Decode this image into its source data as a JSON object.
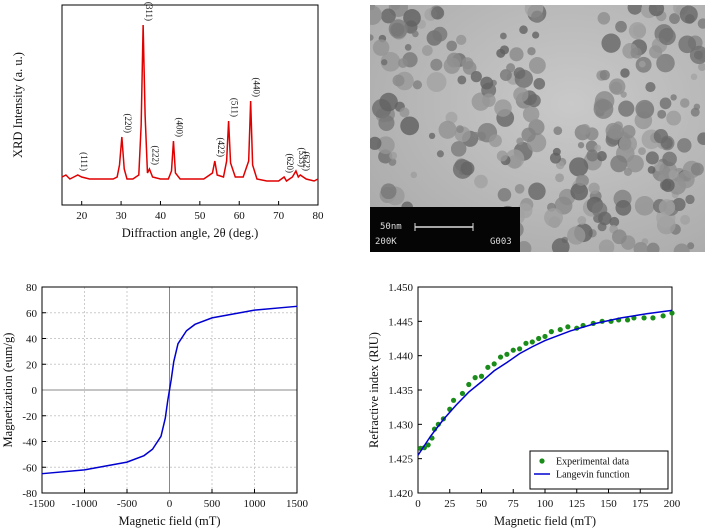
{
  "chart_data": [
    {
      "type": "line",
      "xlabel": "Diffraction angle, 2θ (deg.)",
      "ylabel": "XRD Intensity (a. u.)",
      "xlim": [
        15,
        80
      ],
      "xticks": [
        20,
        30,
        40,
        50,
        60,
        70,
        80
      ],
      "ylim": [
        0,
        100
      ],
      "series": [
        {
          "color": "#e00000",
          "x": [
            15,
            16,
            17,
            18,
            19,
            20,
            22,
            24,
            26,
            28,
            29,
            29.6,
            30.2,
            30.8,
            31.5,
            33,
            34.5,
            35.1,
            35.6,
            36.1,
            36.7,
            37.2,
            38,
            40,
            42,
            42.8,
            43.3,
            43.8,
            45,
            48,
            51,
            53.2,
            53.8,
            54.4,
            56,
            56.8,
            57.3,
            57.8,
            59,
            61,
            62.4,
            62.9,
            63.4,
            64.5,
            67,
            70,
            71.4,
            72,
            73.5,
            74.4,
            75,
            75.5,
            77,
            79,
            80
          ],
          "values": [
            14,
            15,
            13,
            14,
            15,
            14,
            13,
            13,
            13,
            13,
            14,
            20,
            34,
            18,
            13,
            13,
            15,
            40,
            90,
            45,
            16,
            18,
            14,
            13,
            13,
            17,
            32,
            16,
            13,
            13,
            13,
            16,
            22,
            15,
            14,
            22,
            42,
            21,
            14,
            14,
            22,
            52,
            20,
            13,
            12,
            12,
            14,
            12,
            14,
            17,
            14,
            15,
            13,
            12,
            13
          ]
        }
      ],
      "annotations": [
        {
          "text": "(111)",
          "x": 19
        },
        {
          "text": "(220)",
          "x": 30.2
        },
        {
          "text": "(311)",
          "x": 35.6
        },
        {
          "text": "(222)",
          "x": 37.2
        },
        {
          "text": "(400)",
          "x": 43.3
        },
        {
          "text": "(422)",
          "x": 53.8
        },
        {
          "text": "(511)",
          "x": 57.3
        },
        {
          "text": "(440)",
          "x": 62.9
        },
        {
          "text": "(620)",
          "x": 71.4
        },
        {
          "text": "(533)",
          "x": 74.4
        },
        {
          "text": "(622)",
          "x": 75.5
        }
      ]
    },
    {
      "type": "line",
      "xlabel": "Magnetic field (mT)",
      "ylabel": "Magnetization (eum/g)",
      "grid": true,
      "zero_lines": true,
      "xlim": [
        -1500,
        1500
      ],
      "xticks": [
        -1500,
        -1000,
        -500,
        0,
        500,
        1000,
        1500
      ],
      "ylim": [
        -80,
        80
      ],
      "yticks": [
        -80,
        -60,
        -40,
        -20,
        0,
        20,
        40,
        60,
        80
      ],
      "series": [
        {
          "color": "#0000d0",
          "x": [
            -1500,
            -1000,
            -500,
            -300,
            -200,
            -100,
            -50,
            -20,
            0,
            20,
            50,
            100,
            200,
            300,
            500,
            1000,
            1500
          ],
          "values": [
            -65,
            -62,
            -56,
            -51,
            -46,
            -36,
            -22,
            -8,
            0,
            8,
            22,
            36,
            46,
            51,
            56,
            62,
            65
          ]
        }
      ]
    },
    {
      "type": "line",
      "xlabel": "Magnetic field (mT)",
      "ylabel": "Refractive index (RIU)",
      "legend": "lower right",
      "xlim": [
        0,
        200
      ],
      "xticks": [
        0,
        25,
        50,
        75,
        100,
        125,
        150,
        175,
        200
      ],
      "ylim": [
        1.42,
        1.45
      ],
      "yticks": [
        {
          "value": 1.42,
          "label": "1.420"
        },
        {
          "value": 1.425,
          "label": "1.425"
        },
        {
          "value": 1.43,
          "label": "1.430"
        },
        {
          "value": 1.435,
          "label": "1.435"
        },
        {
          "value": 1.44,
          "label": "1.440"
        },
        {
          "value": 1.445,
          "label": "1.445"
        },
        {
          "value": 1.45,
          "label": "1.450"
        }
      ],
      "series": [
        {
          "name": "Experimental data",
          "type": "scatter",
          "color": "#1a8c1a",
          "x": [
            2,
            5,
            8,
            11,
            13,
            16,
            20,
            25,
            28,
            35,
            40,
            45,
            50,
            55,
            60,
            65,
            70,
            75,
            80,
            85,
            90,
            95,
            100,
            105,
            112,
            118,
            125,
            130,
            138,
            145,
            152,
            158,
            165,
            170,
            178,
            185,
            193,
            200
          ],
          "values": [
            1.4265,
            1.4266,
            1.427,
            1.428,
            1.4293,
            1.43,
            1.4308,
            1.4322,
            1.4335,
            1.4345,
            1.4358,
            1.4368,
            1.437,
            1.4383,
            1.4388,
            1.4398,
            1.4402,
            1.4408,
            1.441,
            1.4418,
            1.442,
            1.4425,
            1.4428,
            1.4435,
            1.4438,
            1.4442,
            1.444,
            1.4444,
            1.4447,
            1.445,
            1.445,
            1.4452,
            1.4452,
            1.4455,
            1.4455,
            1.4455,
            1.4458,
            1.4462
          ]
        },
        {
          "name": "Langevin function",
          "type": "line",
          "color": "#0000d0",
          "x": [
            0,
            10,
            20,
            30,
            40,
            50,
            60,
            70,
            80,
            90,
            100,
            120,
            140,
            160,
            180,
            200
          ],
          "values": [
            1.4255,
            1.4283,
            1.4307,
            1.4328,
            1.4347,
            1.4362,
            1.4378,
            1.439,
            1.4403,
            1.4413,
            1.4422,
            1.4436,
            1.4447,
            1.4455,
            1.4461,
            1.4466
          ]
        }
      ]
    }
  ],
  "image": {
    "scale_bar": "50nm",
    "magnification": "200K",
    "code": "G003"
  }
}
